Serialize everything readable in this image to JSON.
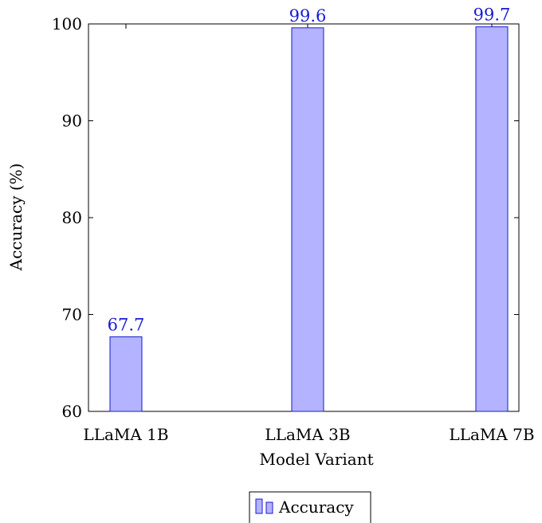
{
  "chart_data": {
    "type": "bar",
    "categories": [
      "LLaMA 1B",
      "LLaMA 3B",
      "LLaMA 7B"
    ],
    "series": [
      {
        "name": "Accuracy",
        "values": [
          67.7,
          99.6,
          99.7
        ]
      }
    ],
    "data_labels": [
      "67.7",
      "99.6",
      "99.7"
    ],
    "xlabel": "Model Variant",
    "ylabel": "Accuracy (%)",
    "ylim": [
      60,
      100
    ],
    "yticks": [
      60,
      70,
      80,
      90,
      100
    ],
    "ytick_labels": [
      "60",
      "70",
      "80",
      "90",
      "100"
    ],
    "grid": false,
    "legend_position": "bottom-center",
    "colors": {
      "bar_fill": "#b3b3ff",
      "bar_stroke": "#1a1ad6",
      "label_color": "#1a1ad6",
      "axis": "#000000"
    }
  }
}
